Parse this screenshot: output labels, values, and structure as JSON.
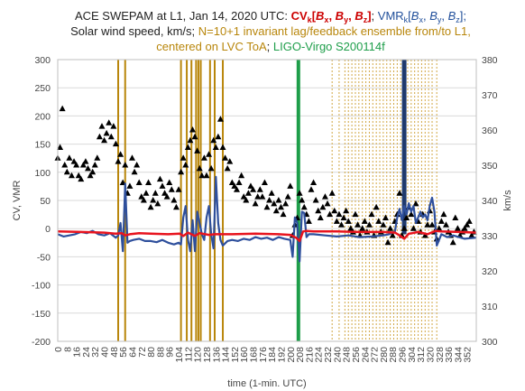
{
  "chart_data": {
    "type": "line",
    "title_lines": [
      [
        {
          "text": "ACE SWEPAM at L1, Jan 14, 2020 UTC: ",
          "color": "#222222"
        },
        {
          "text": "CV",
          "color": "#cc0000",
          "bold": true
        },
        {
          "text": "k",
          "color": "#cc0000",
          "bold": true,
          "sub": true
        },
        {
          "text": "[",
          "color": "#cc0000",
          "bold": true
        },
        {
          "text": "B",
          "color": "#cc0000",
          "bold": true,
          "italic": true
        },
        {
          "text": "x",
          "color": "#cc0000",
          "bold": true,
          "sub": true
        },
        {
          "text": ", ",
          "color": "#cc0000",
          "bold": true
        },
        {
          "text": "B",
          "color": "#cc0000",
          "bold": true,
          "italic": true
        },
        {
          "text": "y",
          "color": "#cc0000",
          "bold": true,
          "sub": true
        },
        {
          "text": ", ",
          "color": "#cc0000",
          "bold": true
        },
        {
          "text": "B",
          "color": "#cc0000",
          "bold": true,
          "italic": true
        },
        {
          "text": "z",
          "color": "#cc0000",
          "bold": true,
          "sub": true
        },
        {
          "text": "]",
          "color": "#cc0000",
          "bold": true
        },
        {
          "text": "; ",
          "color": "#222222"
        },
        {
          "text": "VMR",
          "color": "#1f4e9a"
        },
        {
          "text": "k",
          "color": "#1f4e9a",
          "sub": true
        },
        {
          "text": "[",
          "color": "#1f4e9a"
        },
        {
          "text": "B",
          "color": "#1f4e9a",
          "italic": true
        },
        {
          "text": "x",
          "color": "#1f4e9a",
          "sub": true
        },
        {
          "text": ", ",
          "color": "#1f4e9a"
        },
        {
          "text": "B",
          "color": "#1f4e9a",
          "italic": true
        },
        {
          "text": "y",
          "color": "#1f4e9a",
          "sub": true
        },
        {
          "text": ", ",
          "color": "#1f4e9a"
        },
        {
          "text": "B",
          "color": "#1f4e9a",
          "italic": true
        },
        {
          "text": "z",
          "color": "#1f4e9a",
          "sub": true
        },
        {
          "text": "];",
          "color": "#1f4e9a"
        }
      ],
      [
        {
          "text": "Solar wind speed, km/s; ",
          "color": "#222222"
        },
        {
          "text": "N=10+1 invariant  lag/feedback  ensemble from/to L1,",
          "color": "#b8860b"
        }
      ],
      [
        {
          "text": "centered  on LVC ToA",
          "color": "#b8860b"
        },
        {
          "text": "; ",
          "color": "#222222"
        },
        {
          "text": "LIGO-Virgo  S200114f",
          "color": "#1e9e4a"
        }
      ]
    ],
    "xlabel": "time (1-min. UTC)",
    "ylabel_left": "CV, VMR",
    "ylabel_right": "km/s",
    "xlim": [
      0,
      360
    ],
    "ylim_left": [
      -200,
      300
    ],
    "ylim_right": [
      300,
      380
    ],
    "x_ticks": [
      0,
      8,
      16,
      24,
      32,
      40,
      48,
      56,
      64,
      72,
      80,
      88,
      96,
      104,
      112,
      120,
      128,
      136,
      144,
      152,
      160,
      168,
      176,
      184,
      192,
      200,
      208,
      216,
      224,
      232,
      240,
      248,
      256,
      264,
      272,
      280,
      288,
      296,
      304,
      312,
      320,
      328,
      336,
      344,
      352
    ],
    "x_tick_labels": [
      "0",
      "8",
      "16",
      "24",
      "32",
      "40",
      "48",
      "56",
      "64",
      "72",
      "80",
      "88",
      "96",
      "104",
      "112",
      "120",
      "128",
      "136",
      "144",
      "152",
      "160",
      "168",
      "176",
      "184",
      "192",
      "200",
      "208",
      "216",
      "224",
      "232",
      "240",
      "248",
      "256",
      "264",
      "272",
      "280",
      "288",
      "296",
      "304",
      "312",
      "320",
      "328",
      "336",
      "344",
      "352"
    ],
    "y_ticks_left": [
      300,
      250,
      200,
      150,
      100,
      50,
      0,
      -50,
      -100,
      -150,
      -200
    ],
    "y_ticks_right": [
      380,
      370,
      360,
      350,
      340,
      330,
      320,
      310,
      300
    ],
    "grid": "horizontal",
    "colors": {
      "cv": "#e8141e",
      "vmr": "#2e4f9c",
      "speed": "#000000",
      "lag_lines": "#b8860b",
      "feedback_lines": "#d2a845",
      "event": "#1e9e4a",
      "bar": "#1f3a6e",
      "grid": "#d9d9d9"
    },
    "event_line": {
      "x": 207
    },
    "lag_lines": [
      52,
      58,
      106,
      111,
      115,
      119,
      121,
      123,
      131,
      135,
      142
    ],
    "feedback_lines": [
      236,
      242,
      247,
      250,
      253,
      256,
      259,
      262,
      265,
      268,
      271,
      274,
      277,
      280,
      283,
      286,
      289,
      292,
      295,
      298,
      301,
      304,
      307,
      310,
      313,
      316,
      319,
      322,
      326
    ],
    "bar_x": 298,
    "series": [
      {
        "name": "CV",
        "color": "#e8141e",
        "axis": "left",
        "x": [
          0,
          20,
          40,
          50,
          55,
          58,
          62,
          70,
          80,
          95,
          105,
          108,
          112,
          118,
          122,
          130,
          135,
          140,
          150,
          170,
          190,
          200,
          205,
          208,
          211,
          214,
          220,
          240,
          260,
          280,
          290,
          294,
          298,
          302,
          305,
          310,
          318,
          325,
          330,
          345,
          360
        ],
        "y": [
          -5,
          -6,
          -7,
          -9,
          -8,
          -12,
          -10,
          -8,
          -9,
          -10,
          -9,
          -13,
          -7,
          -13,
          -8,
          -11,
          -10,
          -10,
          -10,
          -9,
          -10,
          -11,
          -16,
          -22,
          -5,
          -4,
          -5,
          -5,
          -6,
          -6,
          -7,
          -12,
          -18,
          -9,
          -8,
          -6,
          -10,
          -4,
          -5,
          -6,
          -7
        ]
      },
      {
        "name": "VMR",
        "color": "#2e4f9c",
        "axis": "left",
        "x": [
          0,
          5,
          10,
          15,
          20,
          25,
          30,
          35,
          40,
          45,
          50,
          52,
          54,
          56,
          58,
          60,
          62,
          65,
          70,
          75,
          80,
          85,
          90,
          95,
          100,
          104,
          106,
          108,
          110,
          112,
          114,
          116,
          118,
          120,
          122,
          124,
          126,
          128,
          130,
          132,
          134,
          136,
          138,
          140,
          142,
          146,
          150,
          155,
          160,
          165,
          170,
          175,
          180,
          185,
          190,
          195,
          200,
          202,
          204,
          206,
          208,
          210,
          212,
          214,
          216,
          220,
          230,
          240,
          250,
          260,
          270,
          280,
          285,
          290,
          292,
          294,
          296,
          298,
          300,
          302,
          304,
          306,
          308,
          310,
          312,
          314,
          316,
          318,
          320,
          322,
          324,
          326,
          330,
          335,
          340,
          350,
          360
        ],
        "y": [
          -10,
          -14,
          -12,
          -10,
          -6,
          -8,
          -4,
          -10,
          -12,
          -8,
          -16,
          -12,
          10,
          -40,
          80,
          -25,
          -22,
          -20,
          -18,
          -22,
          -22,
          -24,
          -20,
          -25,
          -28,
          -25,
          -28,
          20,
          40,
          -20,
          -40,
          15,
          -40,
          30,
          10,
          -10,
          -20,
          20,
          40,
          -10,
          -35,
          92,
          10,
          -20,
          -30,
          -22,
          -20,
          -22,
          -18,
          -20,
          -15,
          -18,
          -16,
          -20,
          -15,
          -18,
          -20,
          -50,
          20,
          10,
          -58,
          30,
          28,
          -15,
          -10,
          -10,
          -12,
          -14,
          -12,
          -15,
          -14,
          -12,
          -10,
          -5,
          20,
          35,
          15,
          40,
          25,
          45,
          30,
          40,
          10,
          20,
          30,
          20,
          25,
          15,
          40,
          55,
          30,
          -30,
          -10,
          -15,
          -12,
          -18,
          -16
        ]
      },
      {
        "name": "Solar wind speed",
        "color": "#000000",
        "axis": "right",
        "marker": "triangle",
        "x": [
          0,
          2,
          4,
          6,
          8,
          10,
          12,
          14,
          16,
          18,
          20,
          22,
          24,
          26,
          28,
          30,
          32,
          34,
          36,
          38,
          40,
          42,
          44,
          46,
          48,
          50,
          52,
          54,
          56,
          58,
          60,
          62,
          64,
          66,
          68,
          70,
          72,
          74,
          76,
          78,
          80,
          82,
          84,
          86,
          88,
          90,
          92,
          94,
          96,
          98,
          100,
          102,
          104,
          106,
          108,
          110,
          112,
          114,
          116,
          118,
          120,
          122,
          124,
          126,
          128,
          130,
          132,
          134,
          136,
          138,
          140,
          142,
          144,
          146,
          148,
          150,
          152,
          154,
          156,
          158,
          160,
          162,
          164,
          166,
          168,
          170,
          172,
          174,
          176,
          178,
          180,
          182,
          184,
          186,
          188,
          190,
          192,
          194,
          196,
          198,
          200,
          202,
          204,
          206,
          208,
          210,
          212,
          214,
          216,
          218,
          220,
          222,
          224,
          226,
          228,
          230,
          232,
          234,
          236,
          238,
          240,
          242,
          244,
          246,
          248,
          250,
          252,
          254,
          256,
          258,
          260,
          262,
          264,
          266,
          268,
          270,
          272,
          274,
          276,
          278,
          280,
          282,
          284,
          286,
          288,
          290,
          292,
          294,
          296,
          298,
          300,
          302,
          304,
          306,
          308,
          310,
          312,
          314,
          316,
          318,
          320,
          322,
          324,
          326,
          328,
          330,
          332,
          334,
          336,
          338,
          340,
          342,
          344,
          346,
          348,
          350,
          352,
          354,
          356,
          358
        ],
        "y": [
          352,
          355,
          366,
          350,
          348,
          352,
          347,
          351,
          350,
          347,
          346,
          350,
          351,
          349,
          347,
          348,
          350,
          352,
          358,
          361,
          357,
          359,
          362,
          358,
          361,
          356,
          351,
          353,
          345,
          350,
          342,
          344,
          352,
          348,
          350,
          345,
          341,
          340,
          342,
          345,
          338,
          340,
          342,
          339,
          346,
          344,
          342,
          341,
          345,
          343,
          340,
          338,
          343,
          348,
          352,
          350,
          355,
          357,
          360,
          358,
          354,
          349,
          347,
          352,
          347,
          353,
          349,
          357,
          355,
          358,
          363,
          355,
          352,
          349,
          351,
          345,
          344,
          343,
          345,
          347,
          341,
          340,
          342,
          344,
          343,
          339,
          341,
          343,
          341,
          345,
          338,
          340,
          342,
          339,
          337,
          340,
          338,
          336,
          339,
          341,
          344,
          330,
          333,
          335,
          342,
          340,
          338,
          336,
          334,
          343,
          345,
          340,
          337,
          335,
          338,
          341,
          339,
          336,
          342,
          337,
          334,
          336,
          333,
          335,
          337,
          334,
          332,
          331,
          336,
          333,
          330,
          332,
          334,
          331,
          333,
          336,
          330,
          338,
          334,
          331,
          333,
          335,
          328,
          332,
          330,
          334,
          336,
          342,
          330,
          332,
          335,
          338,
          336,
          332,
          339,
          334,
          331,
          336,
          330,
          333,
          337,
          333,
          331,
          329,
          332,
          334,
          336,
          333,
          331,
          330,
          328,
          335,
          332,
          330,
          331,
          332,
          333,
          334,
          330,
          331
        ]
      }
    ]
  }
}
